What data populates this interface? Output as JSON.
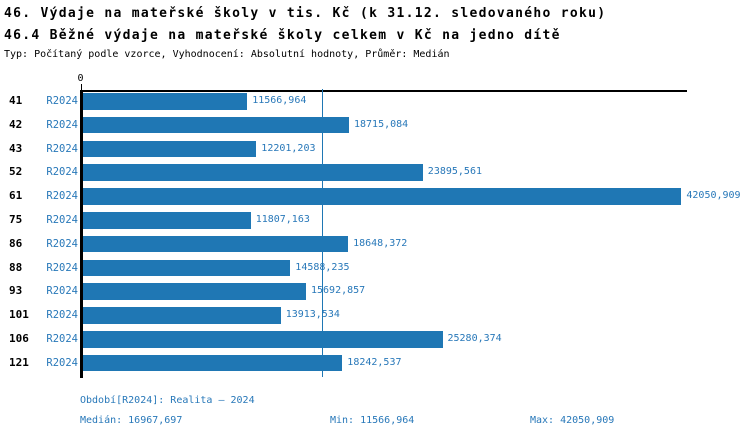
{
  "header": {
    "title1": "46. Výdaje na mateřské školy v tis. Kč (k 31.12. sledovaného roku)",
    "title2": "46.4 Běžné výdaje na mateřské školy celkem v Kč na jedno dítě",
    "meta": "Typ: Počítaný podle vzorce, Vyhodnocení: Absolutní hodnoty, Průměr: Medián"
  },
  "chart_data": {
    "type": "bar",
    "orientation": "horizontal",
    "title": "46. Výdaje na mateřské školy v tis. Kč (k 31.12. sledovaného roku)",
    "subtitle": "46.4 Běžné výdaje na mateřské školy celkem v Kč na jedno dítě",
    "series_name": "R2024",
    "categories": [
      "41",
      "42",
      "43",
      "52",
      "61",
      "75",
      "86",
      "88",
      "93",
      "101",
      "106",
      "121"
    ],
    "values": [
      11566.964,
      18715.084,
      12201.203,
      23895.561,
      42050.909,
      11807.163,
      18648.372,
      14588.235,
      15692.857,
      13913.534,
      25280.374,
      18242.537
    ],
    "value_labels": [
      "11566,964",
      "18715,084",
      "12201,203",
      "23895,561",
      "42050,909",
      "11807,163",
      "18648,372",
      "14588,235",
      "15692,857",
      "13913,534",
      "25280,374",
      "18242,537"
    ],
    "xlim": [
      0,
      42550
    ],
    "x_tick_labels": [
      "0"
    ],
    "grid": false,
    "median_value": 16967.697,
    "min_value": 11566.964,
    "max_value": 42050.909,
    "bar_color": "#1f77b4",
    "label_color": "#2878b9",
    "axis_color": "#000000"
  },
  "footer": {
    "period": "Období[R2024]: Realita – 2024",
    "median": "Medián: 16967,697",
    "min": "Min: 11566,964",
    "max": "Max: 42050,909"
  }
}
